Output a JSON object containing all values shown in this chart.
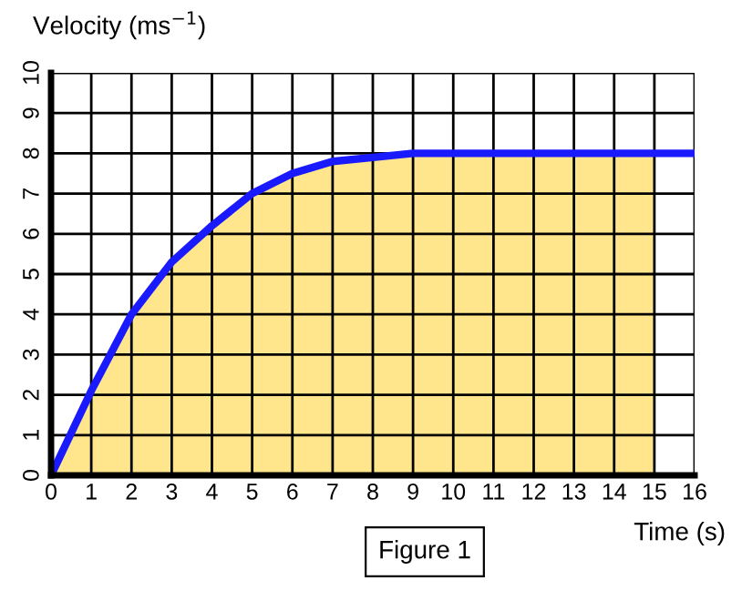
{
  "chart_data": {
    "type": "line",
    "ylabel": "Velocity (ms$^{−1}$)",
    "xlabel": "Time (s)",
    "annotations": [
      "Figure 1"
    ],
    "series": [
      {
        "type": "area",
        "color": "#ffe68c",
        "x": [
          0,
          1,
          2,
          3,
          4,
          5,
          6,
          7,
          8,
          9,
          10,
          11,
          12,
          13,
          14,
          15
        ],
        "values": [
          0,
          2.1,
          4.0,
          5.3,
          6.2,
          7.0,
          7.5,
          7.8,
          7.9,
          8.0,
          8,
          8,
          8,
          8,
          8,
          8
        ]
      },
      {
        "color": "#1a1aff",
        "x": [
          0,
          1,
          2,
          3,
          4,
          5,
          6,
          7,
          8,
          9,
          10,
          11,
          12,
          13,
          14,
          15,
          16
        ],
        "values": [
          0,
          2.1,
          4.0,
          5.3,
          6.2,
          7.0,
          7.5,
          7.8,
          7.9,
          8.0,
          8,
          8,
          8,
          8,
          8,
          8,
          8
        ]
      }
    ],
    "xlim": [
      0,
      16
    ],
    "xticks": [
      0,
      1,
      2,
      3,
      4,
      5,
      6,
      7,
      8,
      9,
      10,
      11,
      12,
      13,
      14,
      15,
      16
    ],
    "ylim": [
      0,
      10
    ],
    "yticks": [
      0,
      1,
      2,
      3,
      4,
      5,
      6,
      7,
      8,
      9,
      10
    ],
    "grid": true,
    "legend": false
  }
}
